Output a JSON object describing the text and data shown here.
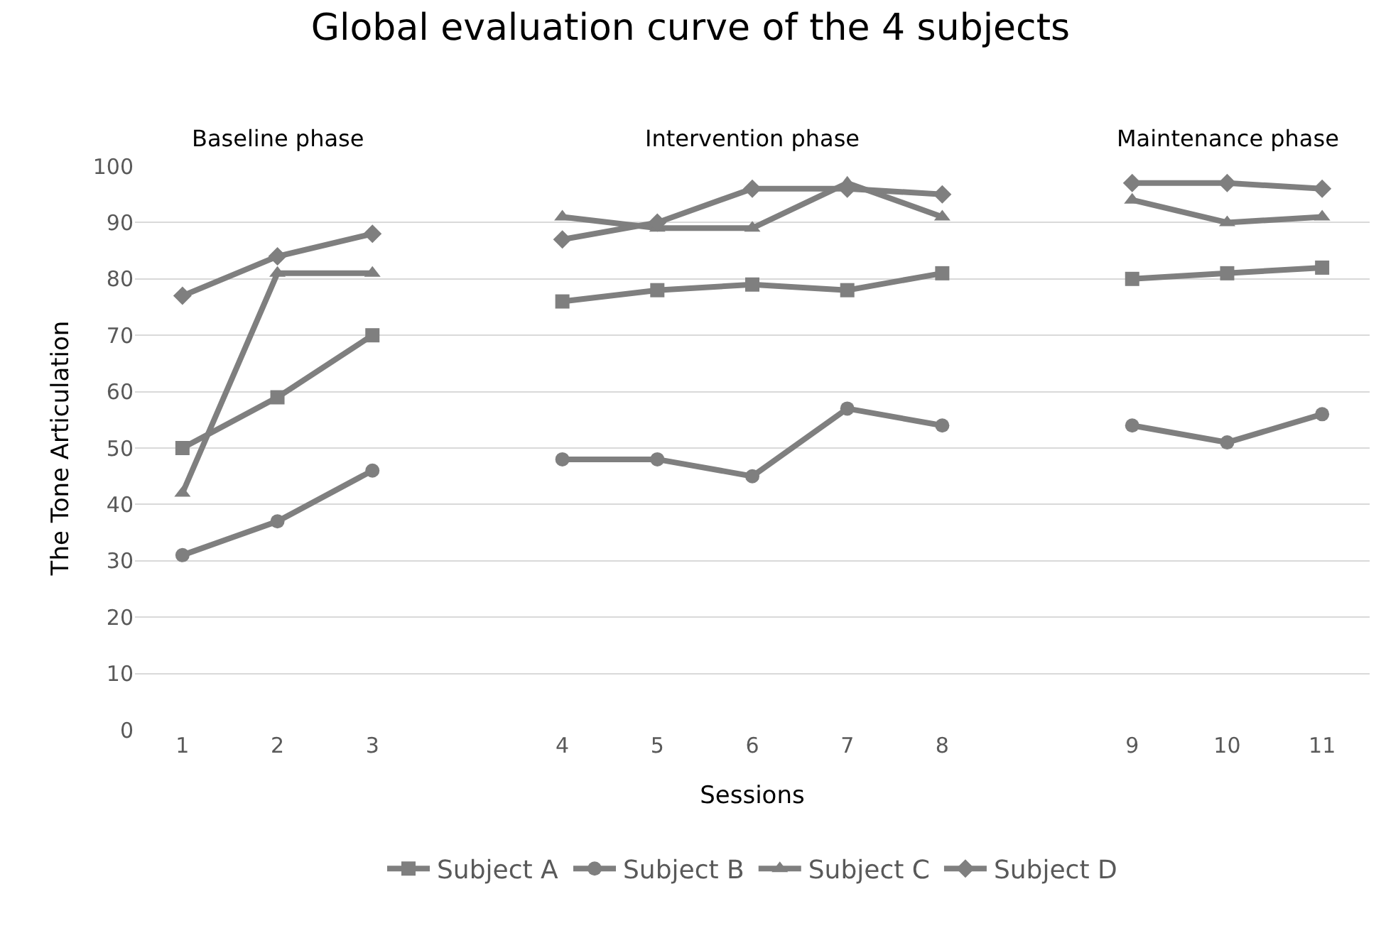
{
  "chart_data": {
    "type": "line",
    "title": "Global evaluation curve of the 4 subjects",
    "xlabel": "Sessions",
    "ylabel": "The Tone Articulation",
    "categories": [
      "1",
      "2",
      "3",
      null,
      "4",
      "5",
      "6",
      "7",
      "8",
      null,
      "9",
      "10",
      "11"
    ],
    "series": [
      {
        "name": "Subject A",
        "color": "#7f7f7f",
        "marker": "square",
        "values": [
          50,
          59,
          70,
          null,
          76,
          78,
          79,
          78,
          81,
          null,
          80,
          81,
          82
        ]
      },
      {
        "name": "Subject B",
        "color": "#7f7f7f",
        "marker": "circle",
        "values": [
          31,
          37,
          46,
          null,
          48,
          48,
          45,
          57,
          54,
          null,
          54,
          51,
          56
        ]
      },
      {
        "name": "Subject C",
        "color": "#7f7f7f",
        "marker": "triangle",
        "values": [
          42,
          81,
          81,
          null,
          91,
          89,
          89,
          97,
          91,
          null,
          94,
          90,
          91
        ]
      },
      {
        "name": "Subject D",
        "color": "#7f7f7f",
        "marker": "diamond",
        "values": [
          77,
          84,
          88,
          null,
          87,
          90,
          96,
          96,
          95,
          null,
          97,
          97,
          96
        ]
      }
    ],
    "annotations": [
      "Baseline phase",
      "Intervention phase",
      "Maintenance phase"
    ],
    "ylim": [
      0,
      100
    ],
    "yticks": [
      0,
      10,
      20,
      30,
      40,
      50,
      60,
      70,
      80,
      90,
      100
    ],
    "grid": "y",
    "legend": "bottom",
    "line_style": "solid"
  }
}
